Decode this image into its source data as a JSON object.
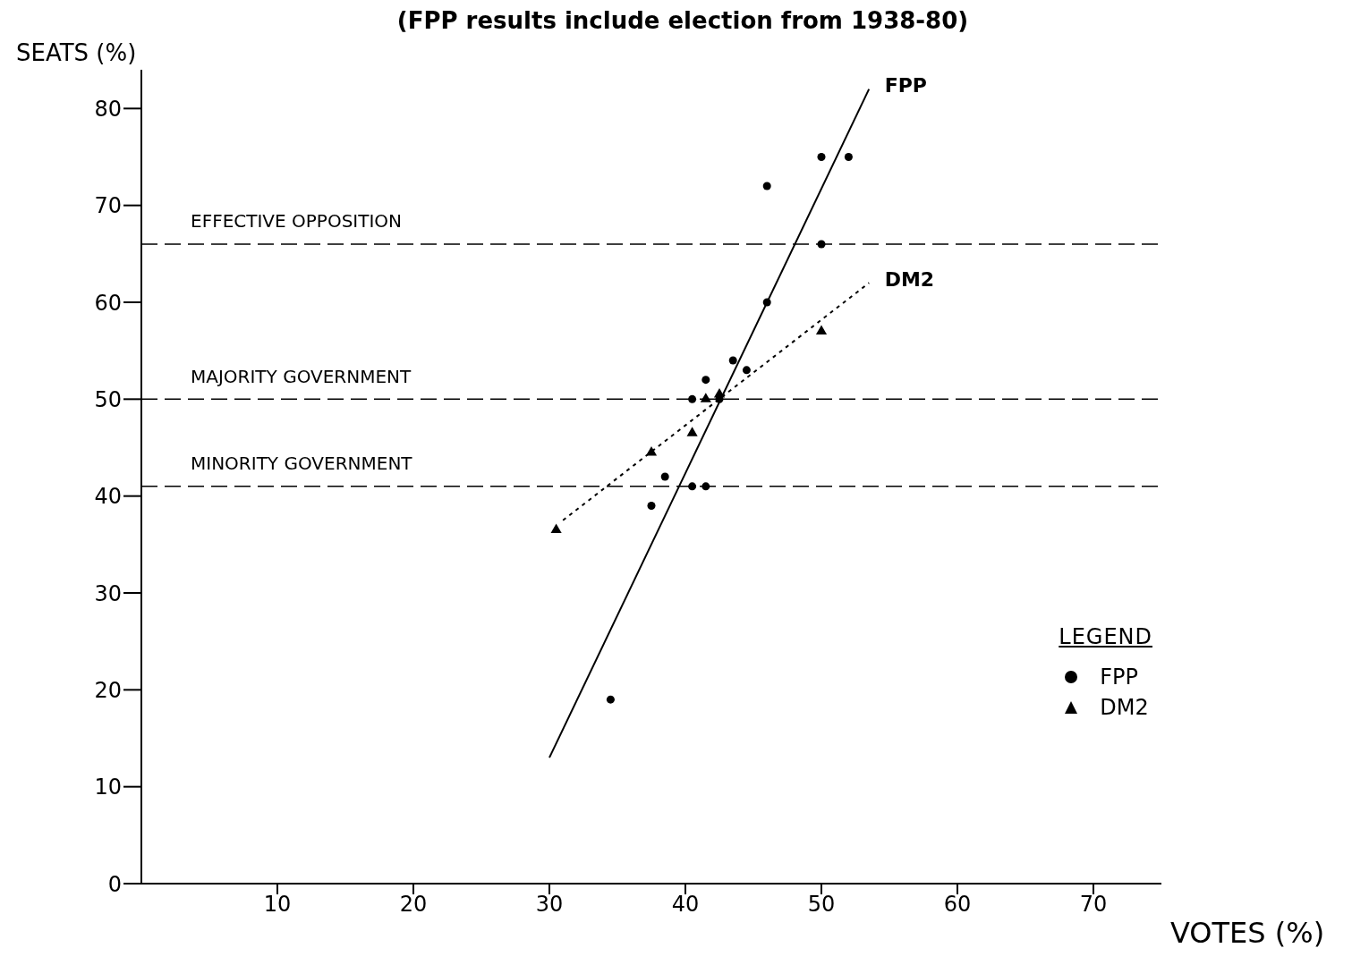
{
  "chart_data": {
    "type": "scatter",
    "title": "(FPP results include election from 1938-80)",
    "xlabel": "VOTES (%)",
    "ylabel": "SEATS (%)",
    "legend_title": "LEGEND",
    "legend": "right",
    "xlim": [
      0,
      75
    ],
    "xticks": [
      10,
      20,
      30,
      40,
      50,
      60,
      70
    ],
    "ylim": [
      0,
      84
    ],
    "yticks": [
      0,
      10,
      20,
      30,
      40,
      50,
      60,
      70,
      80
    ],
    "grid": false,
    "series": [
      {
        "name": "FPP",
        "marker": "circle",
        "color": "#000000",
        "x": [
          50,
          52,
          46,
          50,
          46,
          43.5,
          44.5,
          41.5,
          40.5,
          42.5,
          38.5,
          40.5,
          41.5,
          37.5,
          34.5
        ],
        "values": [
          75,
          75,
          72,
          66,
          60,
          54,
          53,
          52,
          50,
          50,
          42,
          41,
          41,
          39,
          19
        ]
      },
      {
        "name": "DM2",
        "marker": "triangle",
        "color": "#000000",
        "x": [
          30.5,
          37.5,
          40.5,
          41.5,
          42.5,
          50
        ],
        "values": [
          36.5,
          44.5,
          46.5,
          50,
          50.5,
          57
        ]
      },
      {
        "name": "FPP",
        "type": "line",
        "marker": "none",
        "line_style": "solid",
        "color": "#000000",
        "x": [
          30,
          53.5
        ],
        "values": [
          13,
          82
        ]
      },
      {
        "name": "DM2",
        "type": "line",
        "marker": "none",
        "line_style": "dotted",
        "color": "#000000",
        "x": [
          31,
          53.5
        ],
        "values": [
          37.5,
          62
        ]
      }
    ],
    "ref_lines": [
      {
        "axis": "y",
        "value": 66,
        "label": "EFFECTIVE OPPOSITION",
        "line_style": "dashed",
        "color": "#000000"
      },
      {
        "axis": "y",
        "value": 50,
        "label": "MAJORITY GOVERNMENT",
        "line_style": "dashed",
        "color": "#000000"
      },
      {
        "axis": "y",
        "value": 41,
        "label": "MINORITY GOVERNMENT",
        "line_style": "dashed",
        "color": "#000000"
      }
    ]
  }
}
